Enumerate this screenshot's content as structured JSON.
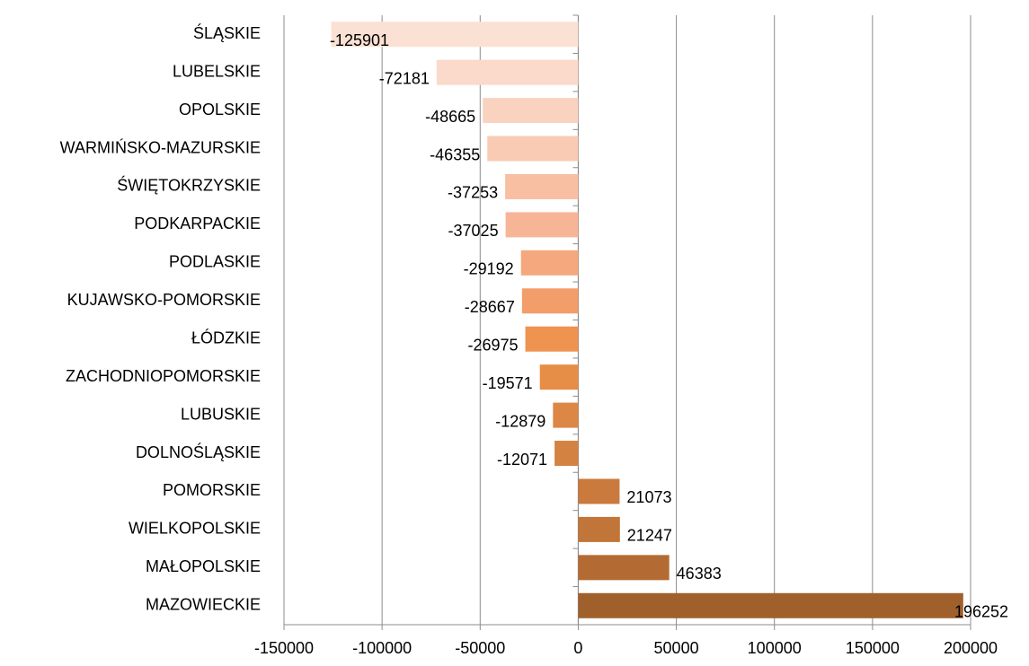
{
  "chart_data": {
    "type": "barh",
    "categories": [
      "ŚLĄSKIE",
      "LUBELSKIE",
      "OPOLSKIE",
      "WARMIŃSKO-MAZURSKIE",
      "ŚWIĘTOKRZYSKIE",
      "PODKARPACKIE",
      "PODLASKIE",
      "KUJAWSKO-POMORSKIE",
      "ŁÓDZKIE",
      "ZACHODNIOPOMORSKIE",
      "LUBUSKIE",
      "DOLNOŚLĄSKIE",
      "POMORSKIE",
      "WIELKOPOLSKIE",
      "MAŁOPOLSKIE",
      "MAZOWIECKIE"
    ],
    "values": [
      -125901,
      -72181,
      -48665,
      -46355,
      -37253,
      -37025,
      -29192,
      -28667,
      -26975,
      -19571,
      -12879,
      -12071,
      21073,
      21247,
      46383,
      196252
    ],
    "colors": [
      "#fbe0d4",
      "#fbd9cb",
      "#fad2c0",
      "#f9cbb5",
      "#f8bfa2",
      "#f7b597",
      "#f5a87e",
      "#f39d6a",
      "#ee9450",
      "#e68e48",
      "#dc8745",
      "#d48242",
      "#c97a3c",
      "#c27538",
      "#b46b33",
      "#a0602c"
    ],
    "xlim": [
      -150000,
      200000
    ],
    "xticks": [
      -150000,
      -100000,
      -50000,
      0,
      50000,
      100000,
      150000,
      200000
    ],
    "grid": true
  }
}
